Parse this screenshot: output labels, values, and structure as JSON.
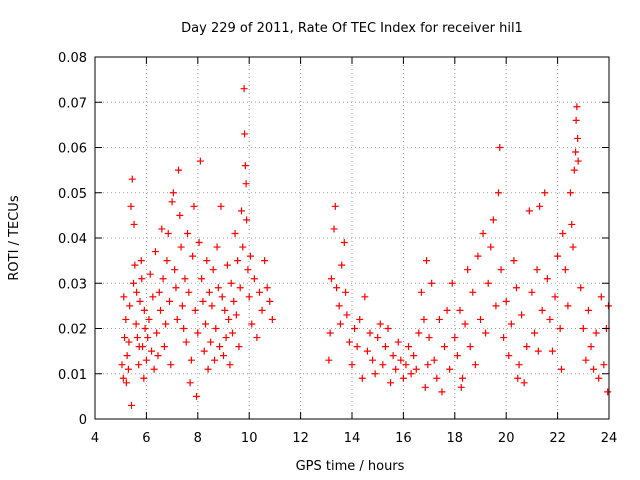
{
  "chart_data": {
    "type": "scatter",
    "title": "Day 229 of 2011, Rate Of TEC Index for receiver hil1",
    "xlabel": "GPS time / hours",
    "ylabel": "ROTI / TECUs",
    "xlim": [
      4,
      24
    ],
    "ylim": [
      0,
      0.08
    ],
    "xticks": [
      4,
      6,
      8,
      10,
      12,
      14,
      16,
      18,
      20,
      22,
      24
    ],
    "yticks": [
      0,
      0.01,
      0.02,
      0.03,
      0.04,
      0.05,
      0.06,
      0.07,
      0.08
    ],
    "xtick_labels": [
      "4",
      "6",
      "8",
      "10",
      "12",
      "14",
      "16",
      "18",
      "20",
      "22",
      "24"
    ],
    "ytick_labels": [
      "0",
      "0.01",
      "0.02",
      "0.03",
      "0.04",
      "0.05",
      "0.06",
      "0.07",
      "0.08"
    ],
    "grid": true,
    "marker": "+",
    "color": "#ff0000",
    "series": [
      {
        "name": "hil1",
        "points": [
          [
            5.05,
            0.012
          ],
          [
            5.1,
            0.009
          ],
          [
            5.15,
            0.018
          ],
          [
            5.2,
            0.022
          ],
          [
            5.25,
            0.014
          ],
          [
            5.3,
            0.011
          ],
          [
            5.35,
            0.025
          ],
          [
            5.4,
            0.047
          ],
          [
            5.45,
            0.053
          ],
          [
            5.5,
            0.03
          ],
          [
            5.55,
            0.034
          ],
          [
            5.6,
            0.021
          ],
          [
            5.65,
            0.018
          ],
          [
            5.7,
            0.012
          ],
          [
            5.75,
            0.026
          ],
          [
            5.8,
            0.035
          ],
          [
            5.85,
            0.016
          ],
          [
            5.9,
            0.009
          ],
          [
            5.95,
            0.02
          ],
          [
            6.0,
            0.013
          ],
          [
            5.12,
            0.027
          ],
          [
            5.22,
            0.008
          ],
          [
            5.32,
            0.017
          ],
          [
            5.42,
            0.003
          ],
          [
            5.52,
            0.043
          ],
          [
            5.62,
            0.028
          ],
          [
            5.72,
            0.016
          ],
          [
            5.82,
            0.031
          ],
          [
            5.92,
            0.024
          ],
          [
            6.05,
            0.018
          ],
          [
            6.1,
            0.022
          ],
          [
            6.15,
            0.032
          ],
          [
            6.2,
            0.015
          ],
          [
            6.25,
            0.027
          ],
          [
            6.3,
            0.011
          ],
          [
            6.35,
            0.037
          ],
          [
            6.4,
            0.019
          ],
          [
            6.45,
            0.014
          ],
          [
            6.5,
            0.028
          ],
          [
            6.55,
            0.024
          ],
          [
            6.6,
            0.042
          ],
          [
            6.65,
            0.031
          ],
          [
            6.7,
            0.016
          ],
          [
            6.75,
            0.021
          ],
          [
            6.8,
            0.035
          ],
          [
            6.85,
            0.041
          ],
          [
            6.9,
            0.026
          ],
          [
            6.95,
            0.012
          ],
          [
            7.0,
            0.048
          ],
          [
            7.05,
            0.05
          ],
          [
            7.1,
            0.033
          ],
          [
            7.15,
            0.029
          ],
          [
            7.2,
            0.022
          ],
          [
            7.25,
            0.055
          ],
          [
            7.3,
            0.045
          ],
          [
            7.35,
            0.038
          ],
          [
            7.4,
            0.025
          ],
          [
            7.45,
            0.02
          ],
          [
            7.5,
            0.031
          ],
          [
            7.55,
            0.017
          ],
          [
            7.6,
            0.041
          ],
          [
            7.65,
            0.028
          ],
          [
            7.7,
            0.008
          ],
          [
            7.75,
            0.013
          ],
          [
            7.8,
            0.036
          ],
          [
            7.85,
            0.047
          ],
          [
            7.9,
            0.024
          ],
          [
            7.95,
            0.005
          ],
          [
            8.0,
            0.019
          ],
          [
            8.05,
            0.039
          ],
          [
            8.1,
            0.057
          ],
          [
            8.15,
            0.031
          ],
          [
            8.2,
            0.026
          ],
          [
            8.25,
            0.015
          ],
          [
            8.3,
            0.021
          ],
          [
            8.35,
            0.035
          ],
          [
            8.4,
            0.011
          ],
          [
            8.45,
            0.028
          ],
          [
            8.5,
            0.017
          ],
          [
            8.55,
            0.025
          ],
          [
            8.6,
            0.033
          ],
          [
            8.65,
            0.013
          ],
          [
            8.7,
            0.02
          ],
          [
            8.75,
            0.038
          ],
          [
            8.8,
            0.029
          ],
          [
            8.85,
            0.016
          ],
          [
            8.9,
            0.047
          ],
          [
            8.95,
            0.027
          ],
          [
            9.0,
            0.014
          ],
          [
            9.05,
            0.024
          ],
          [
            9.1,
            0.018
          ],
          [
            9.15,
            0.034
          ],
          [
            9.2,
            0.022
          ],
          [
            9.25,
            0.012
          ],
          [
            9.3,
            0.03
          ],
          [
            9.35,
            0.019
          ],
          [
            9.4,
            0.026
          ],
          [
            9.45,
            0.041
          ],
          [
            9.5,
            0.023
          ],
          [
            9.55,
            0.035
          ],
          [
            9.6,
            0.016
          ],
          [
            9.65,
            0.029
          ],
          [
            9.7,
            0.046
          ],
          [
            9.75,
            0.038
          ],
          [
            9.8,
            0.073
          ],
          [
            9.82,
            0.063
          ],
          [
            9.85,
            0.056
          ],
          [
            9.88,
            0.052
          ],
          [
            9.9,
            0.044
          ],
          [
            9.95,
            0.033
          ],
          [
            10.0,
            0.027
          ],
          [
            10.05,
            0.036
          ],
          [
            10.1,
            0.021
          ],
          [
            10.2,
            0.031
          ],
          [
            10.3,
            0.018
          ],
          [
            10.4,
            0.028
          ],
          [
            10.5,
            0.024
          ],
          [
            10.6,
            0.035
          ],
          [
            10.7,
            0.029
          ],
          [
            10.8,
            0.026
          ],
          [
            10.9,
            0.022
          ],
          [
            13.1,
            0.013
          ],
          [
            13.15,
            0.019
          ],
          [
            13.2,
            0.031
          ],
          [
            13.3,
            0.042
          ],
          [
            13.35,
            0.047
          ],
          [
            13.4,
            0.029
          ],
          [
            13.5,
            0.025
          ],
          [
            13.55,
            0.021
          ],
          [
            13.6,
            0.034
          ],
          [
            13.7,
            0.039
          ],
          [
            13.75,
            0.028
          ],
          [
            13.8,
            0.023
          ],
          [
            13.9,
            0.017
          ],
          [
            14.0,
            0.012
          ],
          [
            14.1,
            0.02
          ],
          [
            14.2,
            0.016
          ],
          [
            14.3,
            0.022
          ],
          [
            14.4,
            0.009
          ],
          [
            14.5,
            0.027
          ],
          [
            14.6,
            0.015
          ],
          [
            14.7,
            0.019
          ],
          [
            14.8,
            0.013
          ],
          [
            14.9,
            0.01
          ],
          [
            15.0,
            0.018
          ],
          [
            15.1,
            0.021
          ],
          [
            15.2,
            0.012
          ],
          [
            15.3,
            0.016
          ],
          [
            15.4,
            0.02
          ],
          [
            15.5,
            0.008
          ],
          [
            15.6,
            0.014
          ],
          [
            15.7,
            0.011
          ],
          [
            15.8,
            0.017
          ],
          [
            15.9,
            0.013
          ],
          [
            16.0,
            0.009
          ],
          [
            16.1,
            0.012
          ],
          [
            16.2,
            0.016
          ],
          [
            16.3,
            0.01
          ],
          [
            16.4,
            0.014
          ],
          [
            16.5,
            0.011
          ],
          [
            16.6,
            0.019
          ],
          [
            16.7,
            0.028
          ],
          [
            16.8,
            0.022
          ],
          [
            16.85,
            0.007
          ],
          [
            16.9,
            0.035
          ],
          [
            16.95,
            0.012
          ],
          [
            17.0,
            0.018
          ],
          [
            17.1,
            0.03
          ],
          [
            17.2,
            0.013
          ],
          [
            17.3,
            0.009
          ],
          [
            17.4,
            0.022
          ],
          [
            17.5,
            0.006
          ],
          [
            17.6,
            0.016
          ],
          [
            17.7,
            0.024
          ],
          [
            17.8,
            0.011
          ],
          [
            17.9,
            0.03
          ],
          [
            18.0,
            0.018
          ],
          [
            18.1,
            0.014
          ],
          [
            18.2,
            0.024
          ],
          [
            18.3,
            0.009
          ],
          [
            18.4,
            0.021
          ],
          [
            18.5,
            0.033
          ],
          [
            18.6,
            0.016
          ],
          [
            18.7,
            0.028
          ],
          [
            18.8,
            0.012
          ],
          [
            18.9,
            0.036
          ],
          [
            19.0,
            0.022
          ],
          [
            19.1,
            0.041
          ],
          [
            19.2,
            0.019
          ],
          [
            19.3,
            0.03
          ],
          [
            19.4,
            0.038
          ],
          [
            19.5,
            0.044
          ],
          [
            19.6,
            0.025
          ],
          [
            19.7,
            0.05
          ],
          [
            19.75,
            0.06
          ],
          [
            19.8,
            0.033
          ],
          [
            19.9,
            0.018
          ],
          [
            20.0,
            0.026
          ],
          [
            20.1,
            0.014
          ],
          [
            20.2,
            0.021
          ],
          [
            20.3,
            0.035
          ],
          [
            20.4,
            0.029
          ],
          [
            20.5,
            0.012
          ],
          [
            20.6,
            0.023
          ],
          [
            20.7,
            0.008
          ],
          [
            20.8,
            0.016
          ],
          [
            20.9,
            0.046
          ],
          [
            21.0,
            0.028
          ],
          [
            21.1,
            0.019
          ],
          [
            21.2,
            0.033
          ],
          [
            21.3,
            0.047
          ],
          [
            21.4,
            0.024
          ],
          [
            21.5,
            0.05
          ],
          [
            21.6,
            0.031
          ],
          [
            21.7,
            0.022
          ],
          [
            21.8,
            0.015
          ],
          [
            21.9,
            0.027
          ],
          [
            22.0,
            0.036
          ],
          [
            22.1,
            0.02
          ],
          [
            22.2,
            0.041
          ],
          [
            22.3,
            0.033
          ],
          [
            22.4,
            0.025
          ],
          [
            22.5,
            0.05
          ],
          [
            22.55,
            0.043
          ],
          [
            22.6,
            0.038
          ],
          [
            22.65,
            0.055
          ],
          [
            22.7,
            0.059
          ],
          [
            22.72,
            0.066
          ],
          [
            22.75,
            0.069
          ],
          [
            22.78,
            0.062
          ],
          [
            22.8,
            0.057
          ],
          [
            22.9,
            0.029
          ],
          [
            23.0,
            0.02
          ],
          [
            23.1,
            0.013
          ],
          [
            23.2,
            0.024
          ],
          [
            23.3,
            0.016
          ],
          [
            23.4,
            0.011
          ],
          [
            23.5,
            0.019
          ],
          [
            23.6,
            0.009
          ],
          [
            23.7,
            0.027
          ],
          [
            23.8,
            0.012
          ],
          [
            23.9,
            0.02
          ],
          [
            23.95,
            0.006
          ],
          [
            23.98,
            0.025
          ],
          [
            22.15,
            0.011
          ],
          [
            21.25,
            0.015
          ],
          [
            20.45,
            0.009
          ],
          [
            18.25,
            0.007
          ]
        ]
      }
    ]
  }
}
